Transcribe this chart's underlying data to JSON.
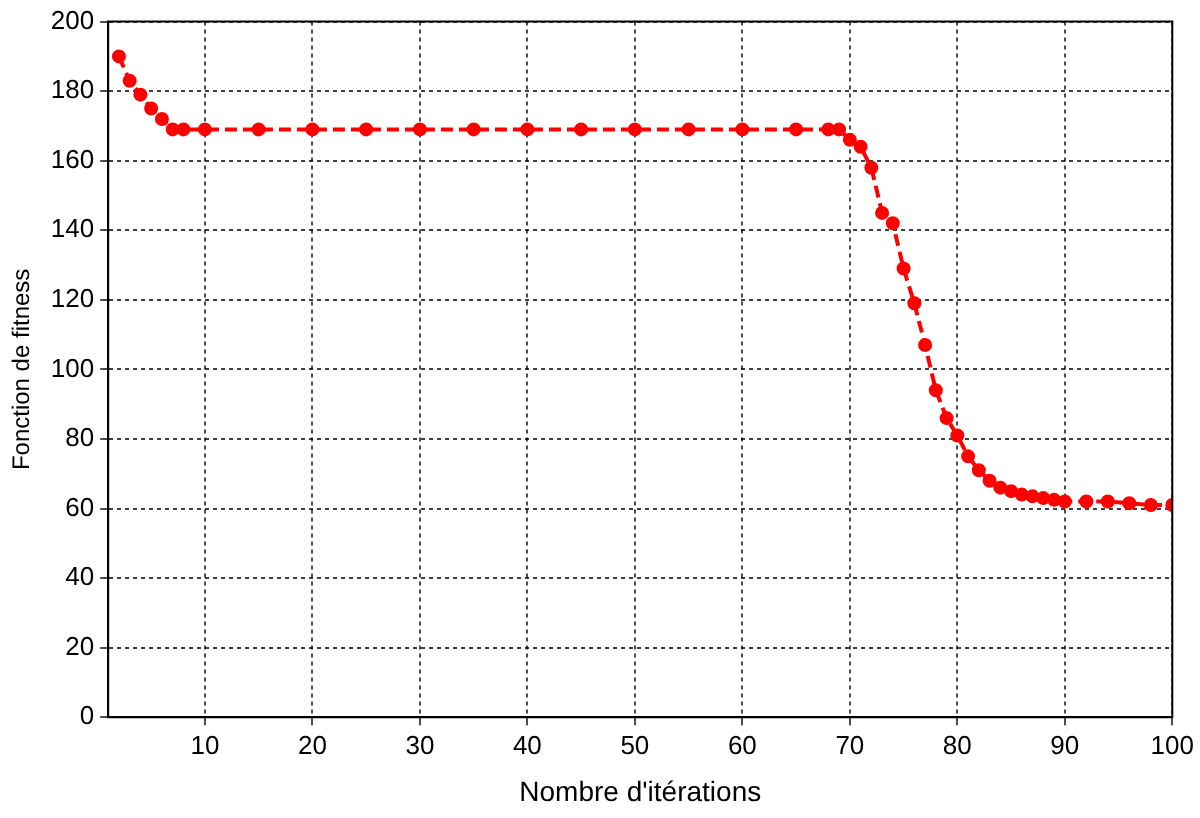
{
  "chart_data": {
    "type": "line",
    "xlabel": "Nombre d'itérations",
    "ylabel": "Fonction de fitness",
    "x": [
      2,
      3,
      4,
      5,
      6,
      7,
      8,
      10,
      15,
      20,
      25,
      30,
      35,
      40,
      45,
      50,
      55,
      60,
      65,
      68,
      69,
      70,
      71,
      72,
      73,
      74,
      75,
      76,
      77,
      78,
      79,
      80,
      81,
      82,
      83,
      84,
      85,
      86,
      87,
      88,
      89,
      90,
      92,
      94,
      96,
      98,
      100
    ],
    "series": [
      {
        "color": "#ff0000",
        "values": [
          190,
          183,
          179,
          175,
          172,
          169,
          169,
          169,
          169,
          169,
          169,
          169,
          169,
          169,
          169,
          169,
          169,
          169,
          169,
          169,
          169,
          166,
          164,
          158,
          145,
          142,
          129,
          119,
          107,
          94,
          86,
          81,
          75,
          71,
          68,
          66,
          65,
          64,
          63.5,
          63,
          62.5,
          62,
          62,
          62,
          61.5,
          61,
          61
        ]
      }
    ],
    "xlim": [
      1,
      100
    ],
    "xticks": [
      10,
      20,
      30,
      40,
      50,
      60,
      70,
      80,
      90,
      100
    ],
    "ylim": [
      0,
      200
    ],
    "yticks": [
      0,
      20,
      40,
      60,
      80,
      100,
      120,
      140,
      160,
      180,
      200
    ],
    "grid": true,
    "legend": false,
    "marker": "circle",
    "line_style": "dashed"
  }
}
